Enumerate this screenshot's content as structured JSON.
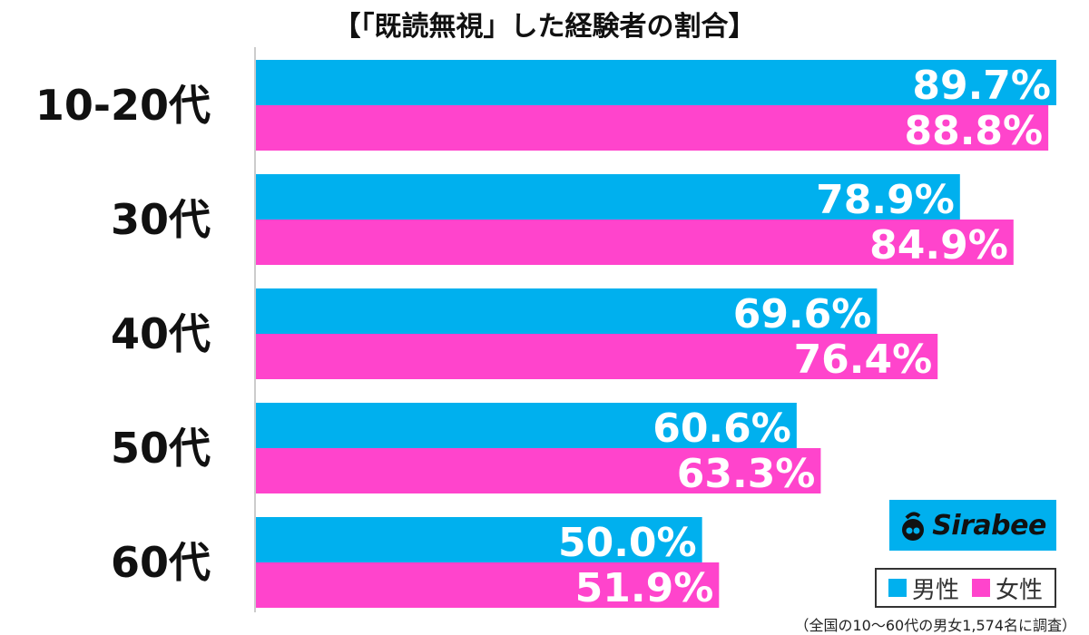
{
  "chart_data": {
    "type": "bar",
    "orientation": "horizontal",
    "title": "【「既読無視」した経験者の割合】",
    "categories": [
      "10-20代",
      "30代",
      "40代",
      "50代",
      "60代"
    ],
    "series": [
      {
        "name": "男性",
        "color": "#00b0ee",
        "values": [
          89.7,
          78.9,
          69.6,
          60.6,
          50.0
        ]
      },
      {
        "name": "女性",
        "color": "#ff44cc",
        "values": [
          88.8,
          84.9,
          76.4,
          63.3,
          51.9
        ]
      }
    ],
    "value_suffix": "%",
    "xlim": [
      0,
      89.7
    ],
    "legend_position": "bottom-right"
  },
  "logo": {
    "text": "Sirabee",
    "icon": "sirabee-logo-icon"
  },
  "footnote": "（全国の10～60代の男女1,574名に調査）"
}
